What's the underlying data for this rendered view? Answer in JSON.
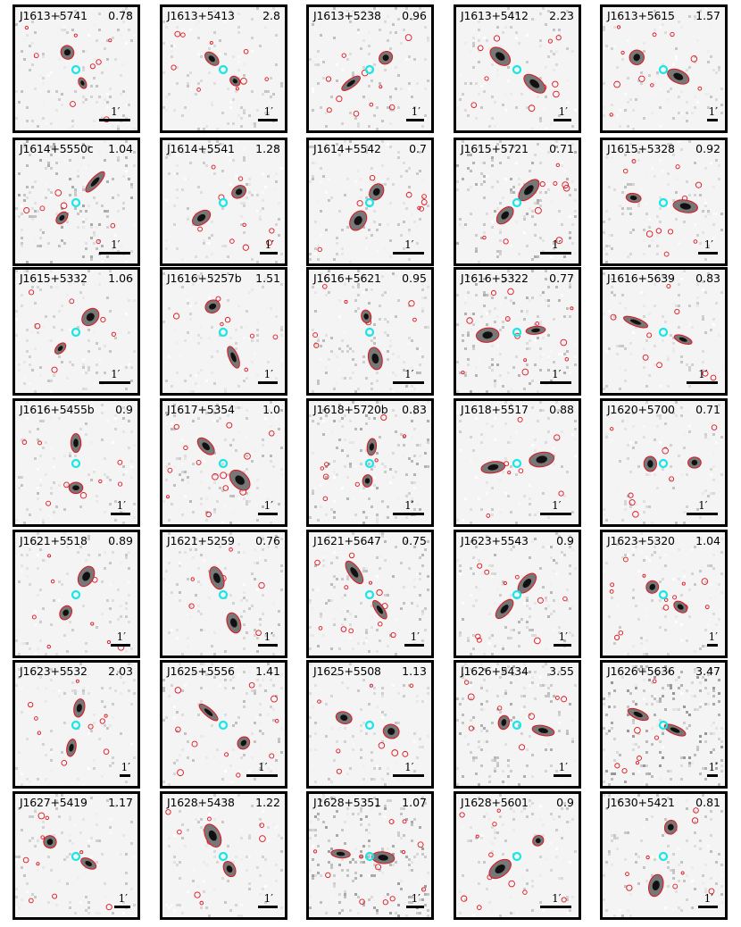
{
  "scale_label": "1′",
  "colors": {
    "contour": "#e0141e",
    "host_marker": "#19e6e6",
    "frame": "#000000"
  },
  "panels": [
    {
      "name": "J1613+5741",
      "z": "0.78"
    },
    {
      "name": "J1613+5413",
      "z": "2.8"
    },
    {
      "name": "J1613+5238",
      "z": "0.96"
    },
    {
      "name": "J1613+5412",
      "z": "2.23"
    },
    {
      "name": "J1613+5615",
      "z": "1.57"
    },
    {
      "name": "J1614+5550c",
      "z": "1.04"
    },
    {
      "name": "J1614+5541",
      "z": "1.28"
    },
    {
      "name": "J1614+5542",
      "z": "0.7"
    },
    {
      "name": "J1615+5721",
      "z": "0.71"
    },
    {
      "name": "J1615+5328",
      "z": "0.92"
    },
    {
      "name": "J1615+5332",
      "z": "1.06"
    },
    {
      "name": "J1616+5257b",
      "z": "1.51"
    },
    {
      "name": "J1616+5621",
      "z": "0.95"
    },
    {
      "name": "J1616+5322",
      "z": "0.77"
    },
    {
      "name": "J1616+5639",
      "z": "0.83"
    },
    {
      "name": "J1616+5455b",
      "z": "0.9"
    },
    {
      "name": "J1617+5354",
      "z": "1.0"
    },
    {
      "name": "J1618+5720b",
      "z": "0.83"
    },
    {
      "name": "J1618+5517",
      "z": "0.88"
    },
    {
      "name": "J1620+5700",
      "z": "0.71"
    },
    {
      "name": "J1621+5518",
      "z": "0.89"
    },
    {
      "name": "J1621+5259",
      "z": "0.76"
    },
    {
      "name": "J1621+5647",
      "z": "0.75"
    },
    {
      "name": "J1623+5543",
      "z": "0.9"
    },
    {
      "name": "J1623+5320",
      "z": "1.04"
    },
    {
      "name": "J1623+5532",
      "z": "2.03"
    },
    {
      "name": "J1625+5556",
      "z": "1.41"
    },
    {
      "name": "J1625+5508",
      "z": "1.13"
    },
    {
      "name": "J1626+5434",
      "z": "3.55"
    },
    {
      "name": "J1626+5636",
      "z": "3.47"
    },
    {
      "name": "J1627+5419",
      "z": "1.17"
    },
    {
      "name": "J1628+5438",
      "z": "1.22"
    },
    {
      "name": "J1628+5351",
      "z": "1.07"
    },
    {
      "name": "J1628+5601",
      "z": "0.9"
    },
    {
      "name": "J1630+5421",
      "z": "0.81"
    }
  ]
}
